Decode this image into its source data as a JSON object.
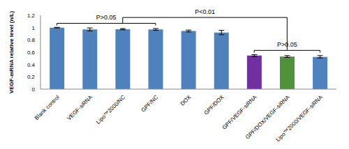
{
  "chart_data": {
    "type": "bar",
    "categories": [
      "Blank control",
      "VEGF-siRNA",
      "Lipo™2000/NC",
      "GPF/NC",
      "DOX",
      "GPF/DOX",
      "GPF/VEGF-siRNA",
      "GPF/DOX/VEGF-siRNA",
      "Lipo™2000/VEGF-siRNA"
    ],
    "values": [
      1,
      0.97,
      0.975,
      0.97,
      0.945,
      0.92,
      0.545,
      0.53,
      0.525
    ],
    "errors": [
      0.005,
      0.025,
      0.01,
      0.015,
      0.015,
      0.035,
      0.015,
      0.015,
      0.02
    ],
    "colors": [
      "#4f81bd",
      "#4f81bd",
      "#4f81bd",
      "#4f81bd",
      "#4f81bd",
      "#4f81bd",
      "#7030a0",
      "#50913c",
      "#4f81bd"
    ],
    "ylabel": "VEGF-mRNA relative level (n/L)",
    "ylim": [
      0,
      1.2
    ],
    "yticks": [
      0,
      0.2,
      0.4,
      0.6,
      0.8,
      1,
      1.2
    ],
    "grid": false,
    "annotations": [
      {
        "text": "P>0.05",
        "from": "Blank control",
        "to": "GPF/NC"
      },
      {
        "text": "P<0.01",
        "from": "Lipo™2000/NC",
        "to": "GPF/DOX/VEGF-siRNA"
      },
      {
        "text": "P>0.05",
        "from": "GPF/VEGF-siRNA",
        "to": "Lipo™2000/VEGF-siRNA"
      }
    ]
  }
}
